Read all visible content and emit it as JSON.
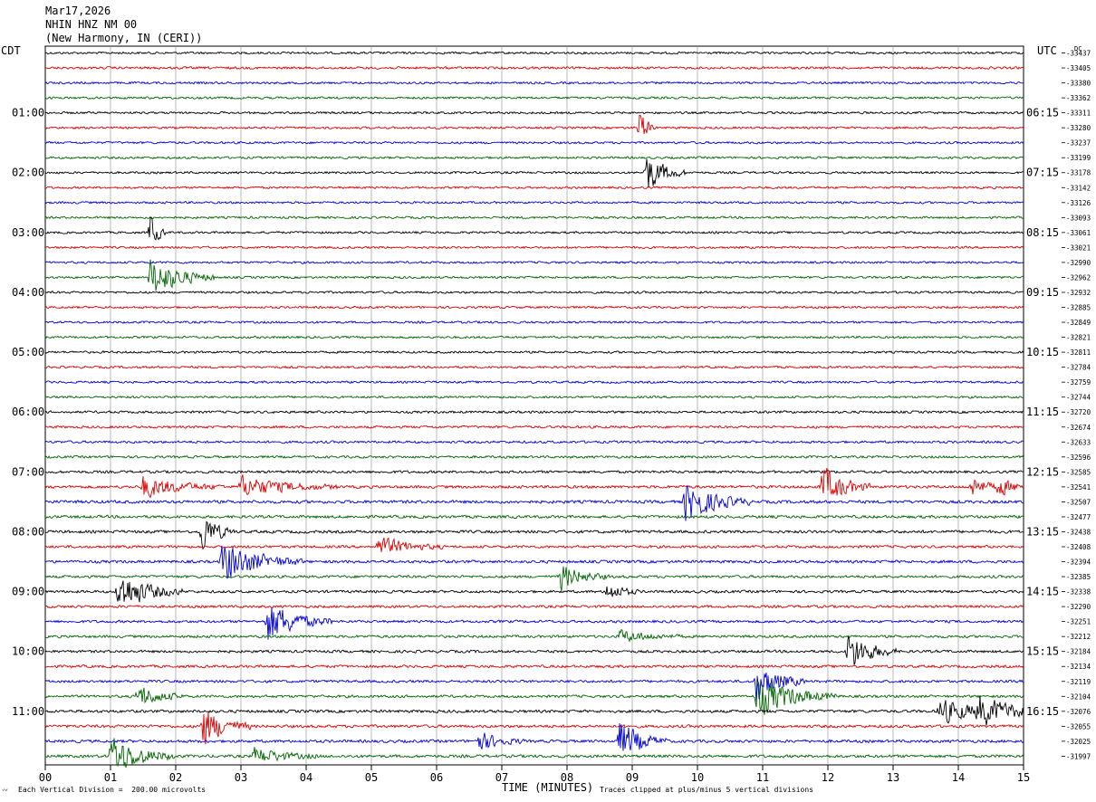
{
  "header": {
    "date": "Mar17,2026",
    "station": "NHIN HNZ NM 00",
    "location": "(New Harmony, IN (CERI))"
  },
  "left_timezone": "CDT",
  "right_timezone": "UTC",
  "dc_label": "DC",
  "footer": {
    "scale_note": "Each Vertical Division =  200.00 microvolts",
    "xlabel": "TIME (MINUTES)",
    "clip_note": "Traces clipped at plus/minus 5 vertical divisions"
  },
  "colors": {
    "cycle": [
      "#000000",
      "#dd0000",
      "#0000dd",
      "#006600"
    ],
    "grid": "#888888",
    "frame": "#000000"
  },
  "chart_data": {
    "type": "line",
    "title": "",
    "xlabel": "TIME (MINUTES)",
    "ylabel": "",
    "xlim": [
      0,
      15
    ],
    "x_ticks": [
      "00",
      "01",
      "02",
      "03",
      "04",
      "05",
      "06",
      "07",
      "08",
      "09",
      "10",
      "11",
      "12",
      "13",
      "14",
      "15"
    ],
    "minutes_per_trace": 15,
    "trace_count": 48,
    "left_hour_labels": [
      "01:00",
      "02:00",
      "03:00",
      "04:00",
      "05:00",
      "06:00",
      "07:00",
      "08:00",
      "09:00",
      "10:00",
      "11:00"
    ],
    "right_hour_labels": [
      "06:15",
      "07:15",
      "08:15",
      "09:15",
      "10:15",
      "11:15",
      "12:15",
      "13:15",
      "14:15",
      "15:15",
      "16:15"
    ],
    "dc_offsets": [
      -33437,
      -33405,
      -33380,
      -33362,
      -33311,
      -33280,
      -33237,
      -33199,
      -33178,
      -33142,
      -33126,
      -33093,
      -33061,
      -33021,
      -32990,
      -32962,
      -32932,
      -32885,
      -32849,
      -32821,
      -32811,
      -32784,
      -32759,
      -32744,
      -32720,
      -32674,
      -32633,
      -32596,
      -32585,
      -32541,
      -32507,
      -32477,
      -32438,
      -32408,
      -32394,
      -32385,
      -32338,
      -32290,
      -32251,
      -32212,
      -32184,
      -32134,
      -32119,
      -32104,
      -32076,
      -32055,
      -32025,
      -31997
    ],
    "noise_level": [
      1.0,
      1.1,
      1.0,
      1.0,
      1.0,
      1.0,
      1.0,
      1.0,
      1.0,
      1.0,
      1.0,
      1.0,
      1.0,
      1.0,
      1.0,
      1.0,
      1.0,
      1.0,
      1.0,
      1.0,
      1.0,
      1.0,
      1.0,
      1.0,
      1.1,
      1.1,
      1.1,
      1.1,
      1.2,
      1.3,
      1.4,
      1.3,
      1.3,
      1.2,
      1.3,
      1.2,
      1.2,
      1.2,
      1.2,
      1.2,
      1.2,
      1.2,
      1.2,
      1.2,
      1.3,
      1.3,
      1.3,
      1.3
    ],
    "events": [
      {
        "trace": 5,
        "minute": 9.1,
        "amp": 5,
        "dur": 0.1
      },
      {
        "trace": 8,
        "minute": 9.2,
        "amp": 5,
        "dur": 0.25
      },
      {
        "trace": 12,
        "minute": 1.6,
        "amp": 5,
        "dur": 0.1
      },
      {
        "trace": 15,
        "minute": 1.6,
        "amp": 5,
        "dur": 0.4
      },
      {
        "trace": 29,
        "minute": 1.5,
        "amp": 2.5,
        "dur": 0.5
      },
      {
        "trace": 29,
        "minute": 3.0,
        "amp": 2.5,
        "dur": 0.6
      },
      {
        "trace": 29,
        "minute": 11.9,
        "amp": 5,
        "dur": 0.3
      },
      {
        "trace": 29,
        "minute": 14.2,
        "amp": 2.5,
        "dur": 0.2
      },
      {
        "trace": 29,
        "minute": 14.6,
        "amp": 2.5,
        "dur": 0.2
      },
      {
        "trace": 30,
        "minute": 9.8,
        "amp": 5,
        "dur": 0.4
      },
      {
        "trace": 32,
        "minute": 2.4,
        "amp": 5,
        "dur": 0.2
      },
      {
        "trace": 33,
        "minute": 5.1,
        "amp": 2.5,
        "dur": 0.4
      },
      {
        "trace": 34,
        "minute": 2.7,
        "amp": 5,
        "dur": 0.5
      },
      {
        "trace": 35,
        "minute": 7.9,
        "amp": 3,
        "dur": 0.3
      },
      {
        "trace": 36,
        "minute": 1.1,
        "amp": 5,
        "dur": 0.4
      },
      {
        "trace": 36,
        "minute": 8.6,
        "amp": 2.5,
        "dur": 0.2
      },
      {
        "trace": 38,
        "minute": 3.4,
        "amp": 5,
        "dur": 0.4
      },
      {
        "trace": 39,
        "minute": 8.8,
        "amp": 1.5,
        "dur": 0.4
      },
      {
        "trace": 40,
        "minute": 12.3,
        "amp": 5,
        "dur": 0.3
      },
      {
        "trace": 42,
        "minute": 10.9,
        "amp": 5,
        "dur": 0.3
      },
      {
        "trace": 43,
        "minute": 1.4,
        "amp": 3,
        "dur": 0.3
      },
      {
        "trace": 43,
        "minute": 10.9,
        "amp": 5,
        "dur": 0.5
      },
      {
        "trace": 44,
        "minute": 13.7,
        "amp": 3,
        "dur": 0.5
      },
      {
        "trace": 44,
        "minute": 14.3,
        "amp": 3,
        "dur": 0.5
      },
      {
        "trace": 45,
        "minute": 2.4,
        "amp": 5,
        "dur": 0.3
      },
      {
        "trace": 46,
        "minute": 6.6,
        "amp": 2.5,
        "dur": 0.3
      },
      {
        "trace": 46,
        "minute": 8.8,
        "amp": 5,
        "dur": 0.3
      },
      {
        "trace": 47,
        "minute": 1.0,
        "amp": 5,
        "dur": 0.4
      },
      {
        "trace": 47,
        "minute": 3.2,
        "amp": 2,
        "dur": 0.4
      }
    ]
  }
}
